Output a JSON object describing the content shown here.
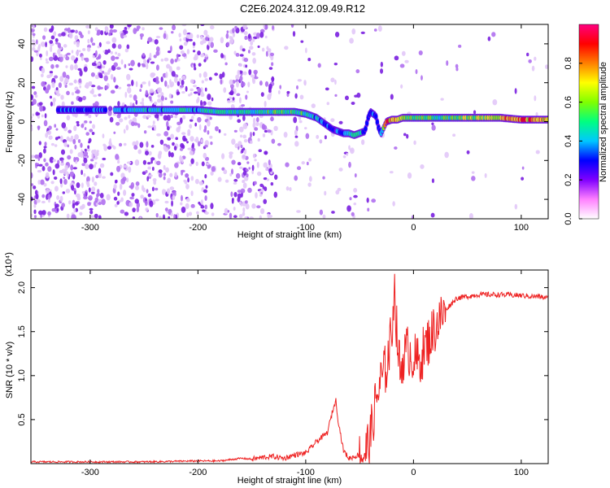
{
  "title": "C2E6.2024.312.09.49.R12",
  "chart_data": [
    {
      "type": "heatmap",
      "xlabel": "Height of straight line (km)",
      "ylabel": "Frequency (Hz)",
      "xlim": [
        -355,
        125
      ],
      "ylim": [
        -50,
        50
      ],
      "xticks": [
        -300,
        -200,
        -100,
        0,
        100
      ],
      "yticks": [
        -40,
        -20,
        0,
        20,
        40
      ],
      "colorbar": {
        "label": "Normalized spectral amplitude",
        "range": [
          0.0,
          1.0
        ],
        "ticks": [
          "0.0",
          "0.2",
          "0.4",
          "0.6",
          "0.8"
        ],
        "colors": [
          "#ffffff",
          "#ff80ff",
          "#8000ff",
          "#0000ff",
          "#00c8ff",
          "#00ff80",
          "#80ff00",
          "#ffff00",
          "#ff8000",
          "#ff0000",
          "#ff0080"
        ]
      },
      "ridge": {
        "x": [
          -330,
          -300,
          -280,
          -250,
          -220,
          -200,
          -180,
          -160,
          -140,
          -120,
          -110,
          -100,
          -95,
          -90,
          -85,
          -80,
          -75,
          -70,
          -65,
          -60,
          -55,
          -50,
          -45,
          -42,
          -40,
          -35,
          -32,
          -30,
          -25,
          -20,
          -15,
          -10,
          0,
          20,
          40,
          60,
          80,
          100,
          125
        ],
        "y": [
          6,
          6,
          6,
          6,
          6,
          6,
          5,
          5,
          5,
          5,
          5,
          4,
          3,
          2,
          0,
          -2,
          -4,
          -5,
          -6,
          -6,
          -7,
          -6,
          -5,
          2,
          5,
          3,
          -4,
          -6,
          0,
          1,
          1,
          2,
          2,
          2,
          2,
          2,
          2,
          1,
          1
        ],
        "amplitude": [
          0.35,
          0.35,
          0.4,
          0.45,
          0.45,
          0.45,
          0.5,
          0.5,
          0.5,
          0.55,
          0.55,
          0.5,
          0.5,
          0.45,
          0.4,
          0.35,
          0.3,
          0.35,
          0.4,
          0.45,
          0.5,
          0.55,
          0.3,
          0.3,
          0.35,
          0.3,
          0.3,
          0.4,
          0.9,
          0.7,
          0.85,
          0.6,
          0.6,
          0.55,
          0.6,
          0.65,
          0.75,
          0.9,
          0.7
        ]
      }
    },
    {
      "type": "line",
      "xlabel": "Height of straight line (km)",
      "ylabel": "SNR (10 * v/v)",
      "yscale_note": "(x10⁴)",
      "xlim": [
        -355,
        125
      ],
      "ylim": [
        0,
        2.2
      ],
      "xticks": [
        -300,
        -200,
        -100,
        0,
        100
      ],
      "yticks": [
        "0.5",
        "1.0",
        "1.5",
        "2.0"
      ],
      "color": "#ee2222",
      "x": [
        -355,
        -300,
        -250,
        -200,
        -180,
        -160,
        -150,
        -140,
        -130,
        -120,
        -110,
        -100,
        -95,
        -90,
        -85,
        -80,
        -75,
        -72,
        -70,
        -65,
        -60,
        -55,
        -50,
        -45,
        -40,
        -35,
        -30,
        -25,
        -20,
        -18,
        -15,
        -12,
        -10,
        -5,
        0,
        5,
        10,
        20,
        30,
        40,
        50,
        60,
        80,
        100,
        110,
        115,
        125
      ],
      "y": [
        0.02,
        0.02,
        0.02,
        0.03,
        0.03,
        0.06,
        0.05,
        0.07,
        0.08,
        0.06,
        0.1,
        0.12,
        0.18,
        0.25,
        0.3,
        0.35,
        0.6,
        0.72,
        0.5,
        0.15,
        0.06,
        0.08,
        0.1,
        0.12,
        0.3,
        0.7,
        0.95,
        1.1,
        1.5,
        2.05,
        1.4,
        1.0,
        1.2,
        1.3,
        1.2,
        1.15,
        1.3,
        1.55,
        1.75,
        1.88,
        1.9,
        1.92,
        1.92,
        1.91,
        1.9,
        1.9,
        1.88
      ]
    }
  ]
}
